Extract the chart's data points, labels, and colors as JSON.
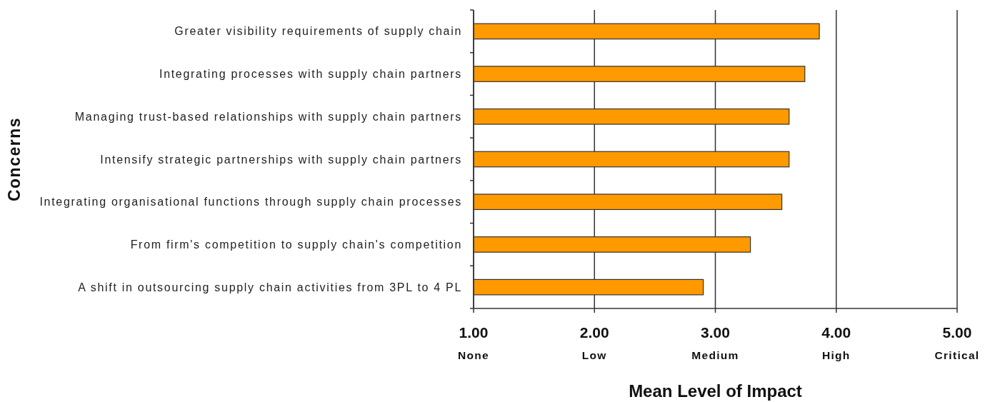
{
  "chart_data": {
    "type": "bar",
    "orientation": "horizontal",
    "xlabel": "Mean Level of Impact",
    "ylabel": "Concerns",
    "categories": [
      "Greater visibility requirements of supply chain",
      "Integrating processes with supply chain partners",
      "Managing trust-based relationships with supply chain partners",
      "Intensify strategic partnerships with supply chain partners",
      "Integrating organisational functions through supply chain processes",
      "From firm's competition to supply chain's competition",
      "A shift in outsourcing supply chain activities from 3PL to 4 PL"
    ],
    "values": [
      3.86,
      3.74,
      3.61,
      3.61,
      3.55,
      3.29,
      2.9
    ],
    "color": "#ff9900",
    "xlim": [
      1,
      5
    ],
    "xticks": [
      {
        "value": 1,
        "label": "1.00\nNone"
      },
      {
        "value": 2,
        "label": "2.00\nLow"
      },
      {
        "value": 3,
        "label": "3.00\nMedium"
      },
      {
        "value": 4,
        "label": "4.00\nHigh"
      },
      {
        "value": 5,
        "label": "5.00\nCritical"
      }
    ],
    "grid": "x"
  }
}
